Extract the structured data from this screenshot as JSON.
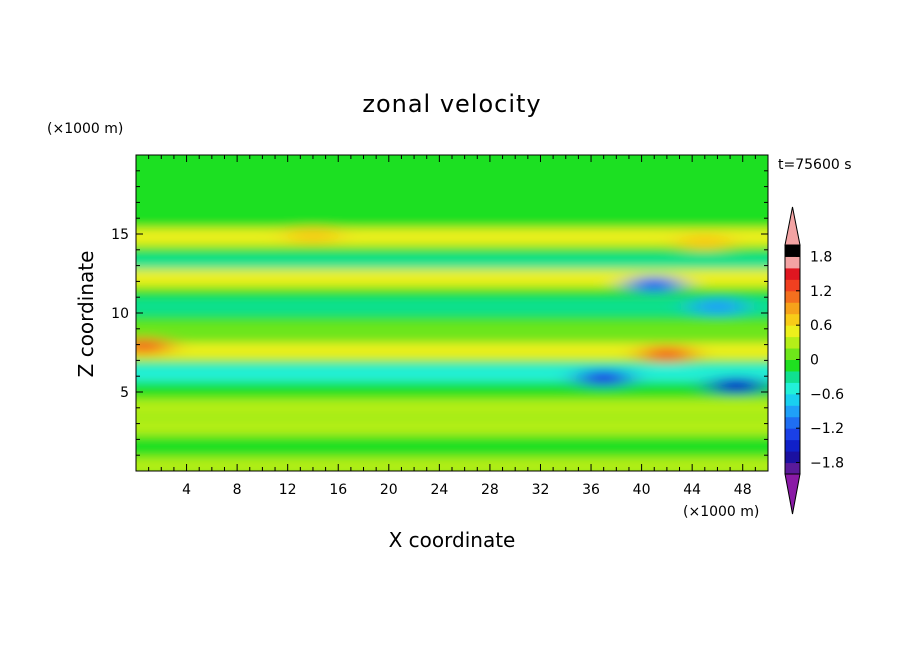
{
  "chart_data": {
    "type": "heatmap",
    "title": "zonal velocity",
    "time_label": "t=75600 s",
    "xlabel": "X coordinate",
    "ylabel": "Z coordinate",
    "x_unit": "(×1000 m)",
    "y_unit": "(×1000 m)",
    "xlim": [
      0,
      50
    ],
    "ylim": [
      0,
      20
    ],
    "x_ticks": [
      "4",
      "8",
      "12",
      "16",
      "20",
      "24",
      "28",
      "32",
      "36",
      "40",
      "44",
      "48"
    ],
    "y_ticks": [
      "5",
      "10",
      "15"
    ],
    "colorbar": {
      "min": -2.0,
      "max": 2.0,
      "step": 0.2,
      "tick_labels": [
        "1.8",
        "1.2",
        "0.6",
        "0",
        "−0.6",
        "−1.2",
        "−1.8"
      ],
      "extend": "both",
      "colors": [
        "#8a1aa6",
        "#5a1a9a",
        "#1b10a0",
        "#1020c8",
        "#1a40e6",
        "#1f6ef2",
        "#1fa0f8",
        "#19d0f0",
        "#22f0d8",
        "#10e090",
        "#1fe020",
        "#6ee61a",
        "#b4ee18",
        "#ecf01c",
        "#f8cc18",
        "#f6a21a",
        "#f4701e",
        "#f04020",
        "#e01620",
        "#f3a3a3"
      ]
    },
    "field_description_bands": [
      {
        "z": 18.0,
        "u": -0.15
      },
      {
        "z": 14.8,
        "u": 0.55
      },
      {
        "z": 13.2,
        "u": -0.25
      },
      {
        "z": 12.2,
        "u": 0.45
      },
      {
        "z": 10.4,
        "u": -0.35
      },
      {
        "z": 8.9,
        "u": 0.15
      },
      {
        "z": 7.6,
        "u": 0.55
      },
      {
        "z": 6.2,
        "u": -0.45
      },
      {
        "z": 5.0,
        "u": -0.2
      },
      {
        "z": 4.0,
        "u": 0.35
      },
      {
        "z": 2.8,
        "u": 0.3
      },
      {
        "z": 1.5,
        "u": -0.1
      },
      {
        "z": 0.3,
        "u": 0.2
      }
    ],
    "features": [
      {
        "x": 45.0,
        "z": 14.5,
        "u": 0.8
      },
      {
        "x": 41.0,
        "z": 11.8,
        "u": -1.2
      },
      {
        "x": 46.0,
        "z": 10.4,
        "u": -1.0
      },
      {
        "x": 37.0,
        "z": 5.9,
        "u": -1.4
      },
      {
        "x": 47.5,
        "z": 5.4,
        "u": -1.5
      },
      {
        "x": 42.0,
        "z": 7.4,
        "u": 1.0
      },
      {
        "x": 0.6,
        "z": 7.9,
        "u": 1.0
      },
      {
        "x": 14.0,
        "z": 14.9,
        "u": 0.7
      }
    ]
  }
}
